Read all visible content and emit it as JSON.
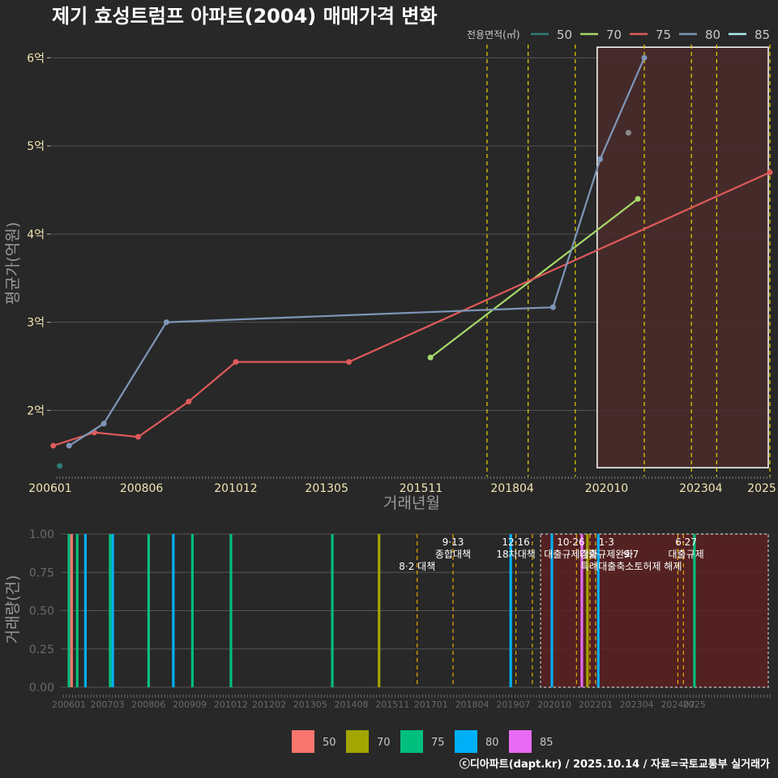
{
  "chart_data": [
    {
      "type": "line",
      "title": "제기 효성트럼프 아파트(2004) 매매가격 변화",
      "xlabel": "거래년월",
      "ylabel": "평균가(억원)",
      "y_unit_suffix": "억",
      "ylim": [
        1.25,
        6.15
      ],
      "yticks": [
        2,
        3,
        4,
        5,
        6
      ],
      "xlim": [
        2006.0,
        2025.08
      ],
      "xticks": [
        {
          "label": "200601",
          "x": 2006.0
        },
        {
          "label": "200806",
          "x": 2008.42
        },
        {
          "label": "201012",
          "x": 2010.92
        },
        {
          "label": "201305",
          "x": 2013.33
        },
        {
          "label": "201511",
          "x": 2015.83
        },
        {
          "label": "201804",
          "x": 2018.25
        },
        {
          "label": "202010",
          "x": 2020.75
        },
        {
          "label": "202304",
          "x": 2023.25
        },
        {
          "label": "2025",
          "x": 2025.0
        }
      ],
      "legend_title": "전용면적(㎡)",
      "series": [
        {
          "name": "50",
          "color": "#2e7d78",
          "points": [
            [
              2006.25,
              1.37
            ]
          ]
        },
        {
          "name": "70",
          "color": "#a6d96a",
          "points": [
            [
              2016.08,
              2.6
            ],
            [
              2021.58,
              4.4
            ]
          ]
        },
        {
          "name": "75",
          "color": "#e05a5a",
          "points": [
            [
              2006.08,
              1.6
            ],
            [
              2007.17,
              1.75
            ],
            [
              2008.33,
              1.7
            ],
            [
              2009.67,
              2.1
            ],
            [
              2010.92,
              2.55
            ],
            [
              2013.92,
              2.55
            ],
            [
              2025.08,
              4.7
            ]
          ]
        },
        {
          "name": "80",
          "color": "#7f96b8",
          "points": [
            [
              2006.5,
              1.6
            ],
            [
              2007.42,
              1.85
            ],
            [
              2009.08,
              3.0
            ],
            [
              2019.33,
              3.17
            ],
            [
              2020.58,
              4.85
            ],
            [
              2021.75,
              6.0
            ]
          ]
        },
        {
          "name": "85",
          "color": "#a8ecf0",
          "points": []
        }
      ],
      "extra_points": [
        {
          "series": "80",
          "x": 2021.33,
          "y": 5.15,
          "color": "#8a8a8a"
        }
      ],
      "highlight_range": [
        2020.5,
        2025.08
      ],
      "policy_lines": [
        2017.58,
        2018.67,
        2019.92,
        2021.75,
        2023.0,
        2023.67,
        2025.08,
        2025.42
      ]
    },
    {
      "type": "bar",
      "ylabel": "거래량(건)",
      "ylim": [
        0,
        1.0
      ],
      "yticks": [
        "0.00",
        "0.25",
        "0.50",
        "0.75",
        "1.00"
      ],
      "xlim": [
        2006.0,
        2025.08
      ],
      "xticks": [
        {
          "label": "200601",
          "x": 2006.0
        },
        {
          "label": "200703",
          "x": 2007.17
        },
        {
          "label": "200806",
          "x": 2008.42
        },
        {
          "label": "200909",
          "x": 2009.67
        },
        {
          "label": "201012",
          "x": 2010.92
        },
        {
          "label": "201202",
          "x": 2012.08
        },
        {
          "label": "201305",
          "x": 2013.33
        },
        {
          "label": "201408",
          "x": 2014.58
        },
        {
          "label": "201511",
          "x": 2015.83
        },
        {
          "label": "201701",
          "x": 2017.0
        },
        {
          "label": "201804",
          "x": 2018.25
        },
        {
          "label": "201907",
          "x": 2019.5
        },
        {
          "label": "202010",
          "x": 2020.75
        },
        {
          "label": "202201",
          "x": 2022.0
        },
        {
          "label": "202304",
          "x": 2023.25
        },
        {
          "label": "202407",
          "x": 2024.5
        },
        {
          "label": "2025",
          "x": 2025.0
        }
      ],
      "legend": [
        {
          "name": "50",
          "color": "#f8766d"
        },
        {
          "name": "70",
          "color": "#a3a500"
        },
        {
          "name": "75",
          "color": "#00bf7d"
        },
        {
          "name": "80",
          "color": "#00b0f6"
        },
        {
          "name": "85",
          "color": "#e76bf3"
        }
      ],
      "bars": [
        {
          "x": 2006.0,
          "value": 1,
          "series": "75"
        },
        {
          "x": 2006.08,
          "value": 1,
          "series": "50"
        },
        {
          "x": 2006.25,
          "value": 1,
          "series": "75"
        },
        {
          "x": 2006.5,
          "value": 1,
          "series": "80"
        },
        {
          "x": 2007.25,
          "value": 1,
          "series": "75"
        },
        {
          "x": 2007.33,
          "value": 1,
          "series": "80"
        },
        {
          "x": 2008.42,
          "value": 1,
          "series": "75"
        },
        {
          "x": 2009.17,
          "value": 1,
          "series": "80"
        },
        {
          "x": 2009.75,
          "value": 1,
          "series": "75"
        },
        {
          "x": 2010.92,
          "value": 1,
          "series": "75"
        },
        {
          "x": 2014.0,
          "value": 1,
          "series": "75"
        },
        {
          "x": 2015.42,
          "value": 1,
          "series": "70"
        },
        {
          "x": 2019.42,
          "value": 1,
          "series": "80"
        },
        {
          "x": 2020.67,
          "value": 1,
          "series": "80"
        },
        {
          "x": 2021.58,
          "value": 1,
          "series": "85"
        },
        {
          "x": 2021.75,
          "value": 1,
          "series": "70"
        },
        {
          "x": 2022.08,
          "value": 1,
          "series": "80"
        },
        {
          "x": 2025.0,
          "value": 1,
          "series": "75"
        }
      ],
      "highlight_range": [
        2020.33,
        2025.08
      ],
      "policy_lines": [
        2016.58,
        2017.67,
        2019.58,
        2020.08,
        2021.42,
        2021.83,
        2022.0,
        2024.5,
        2024.67
      ],
      "annotations": [
        {
          "x": 2016.58,
          "row": 2,
          "text": "8·2 대책"
        },
        {
          "x": 2017.67,
          "row": 0,
          "text": "9·13"
        },
        {
          "x": 2017.67,
          "row": 1,
          "text": "종합대책"
        },
        {
          "x": 2019.58,
          "row": 0,
          "text": "12·16"
        },
        {
          "x": 2019.58,
          "row": 1,
          "text": "18차대책"
        },
        {
          "x": 2021.25,
          "row": 0,
          "text": "10·26"
        },
        {
          "x": 2021.25,
          "row": 1,
          "text": "대출규제강화"
        },
        {
          "x": 2022.33,
          "row": 0,
          "text": "1·3"
        },
        {
          "x": 2022.33,
          "row": 1,
          "text": "대출규제완화"
        },
        {
          "x": 2023.08,
          "row": 1,
          "text": "9·7"
        },
        {
          "x": 2023.08,
          "row": 2,
          "text": "특례대출축소토허제 해제"
        },
        {
          "x": 2024.75,
          "row": 0,
          "text": "6·27"
        },
        {
          "x": 2024.75,
          "row": 1,
          "text": "대출규제"
        }
      ]
    }
  ],
  "footer": {
    "credit": "ⓒ디아파트(dapt.kr) / 2025.10.14 / 자료=국토교통부 실거래가"
  }
}
